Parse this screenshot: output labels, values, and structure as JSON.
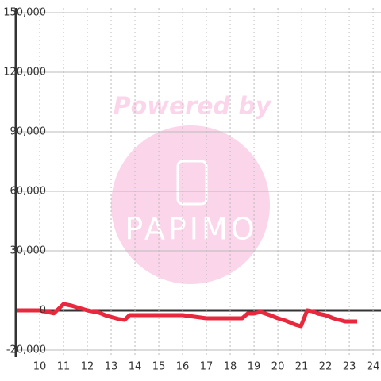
{
  "chart_data": {
    "type": "line",
    "watermark": {
      "top": "Powered by",
      "logo": "PAPIMO"
    },
    "x": [
      9.0,
      10.0,
      10.33,
      10.6,
      11.0,
      11.33,
      12.0,
      12.5,
      12.83,
      13.33,
      13.57,
      13.77,
      16.0,
      17.0,
      18.5,
      18.73,
      19.0,
      19.27,
      19.67,
      20.0,
      20.33,
      20.73,
      20.97,
      21.23,
      21.43,
      21.67,
      22.0,
      22.33,
      22.83,
      23.33
    ],
    "series": [
      {
        "color": "#e8283c",
        "values": [
          0,
          0,
          -800,
          -1500,
          3200,
          2400,
          0,
          -1200,
          -2800,
          -4400,
          -4800,
          -2400,
          -2400,
          -4000,
          -4000,
          -1600,
          -1600,
          -800,
          -2400,
          -4000,
          -5200,
          -7200,
          -8000,
          0,
          -400,
          -1600,
          -2400,
          -4000,
          -5600,
          -5600
        ]
      }
    ],
    "xlim": [
      9,
      24.33
    ],
    "xticks": [
      10,
      11,
      12,
      13,
      14,
      15,
      16,
      17,
      18,
      19,
      20,
      21,
      22,
      23,
      24
    ],
    "ylim": [
      -20000,
      150000
    ],
    "yticks": [
      {
        "value": -20000,
        "label": "-20,000"
      },
      0,
      {
        "value": 30000,
        "label": "30,000"
      },
      {
        "value": 60000,
        "label": "60,000"
      },
      {
        "value": 90000,
        "label": "90,000"
      },
      {
        "value": 120000,
        "label": "120,000"
      },
      {
        "value": 150000,
        "label": "150,000"
      }
    ],
    "grid": true
  }
}
